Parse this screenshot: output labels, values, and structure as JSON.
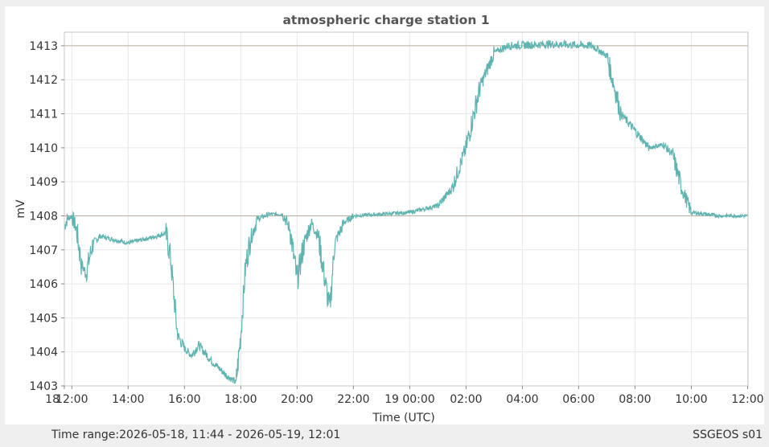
{
  "chart_data": {
    "type": "line",
    "title": "atmospheric charge station 1",
    "xlabel": "Time (UTC)",
    "ylabel": "mV",
    "x_range": [
      "2026-05-18 11:44",
      "2026-05-19 12:01"
    ],
    "ylim": [
      1403,
      1413.4
    ],
    "y_ticks": [
      1403,
      1404,
      1405,
      1406,
      1407,
      1408,
      1409,
      1410,
      1411,
      1412,
      1413
    ],
    "x_ticks": [
      {
        "time": "2026-05-18 11:44",
        "label": "18"
      },
      {
        "time": "2026-05-18 12:00",
        "label": "12:00"
      },
      {
        "time": "2026-05-18 14:00",
        "label": "14:00"
      },
      {
        "time": "2026-05-18 16:00",
        "label": "16:00"
      },
      {
        "time": "2026-05-18 18:00",
        "label": "18:00"
      },
      {
        "time": "2026-05-18 20:00",
        "label": "20:00"
      },
      {
        "time": "2026-05-18 22:00",
        "label": "22:00"
      },
      {
        "time": "2026-05-19 00:00",
        "label": "19 00:00"
      },
      {
        "time": "2026-05-19 02:00",
        "label": "02:00"
      },
      {
        "time": "2026-05-19 04:00",
        "label": "04:00"
      },
      {
        "time": "2026-05-19 06:00",
        "label": "06:00"
      },
      {
        "time": "2026-05-19 08:00",
        "label": "08:00"
      },
      {
        "time": "2026-05-19 10:00",
        "label": "10:00"
      },
      {
        "time": "2026-05-19 12:00",
        "label": "12:00"
      }
    ],
    "reference_lines": [
      1413,
      1408
    ],
    "grid": true,
    "series": [
      {
        "color": "#5fb3b0",
        "points": [
          [
            "2026-05-18 11:44",
            1407.7
          ],
          [
            "2026-05-18 11:50",
            1407.9
          ],
          [
            "2026-05-18 12:00",
            1408.0
          ],
          [
            "2026-05-18 12:10",
            1407.6
          ],
          [
            "2026-05-18 12:20",
            1406.6
          ],
          [
            "2026-05-18 12:30",
            1406.3
          ],
          [
            "2026-05-18 12:45",
            1407.2
          ],
          [
            "2026-05-18 13:00",
            1407.4
          ],
          [
            "2026-05-18 13:30",
            1407.3
          ],
          [
            "2026-05-18 14:00",
            1407.2
          ],
          [
            "2026-05-18 14:30",
            1407.3
          ],
          [
            "2026-05-18 15:00",
            1407.4
          ],
          [
            "2026-05-18 15:20",
            1407.5
          ],
          [
            "2026-05-18 15:30",
            1406.8
          ],
          [
            "2026-05-18 15:45",
            1404.5
          ],
          [
            "2026-05-18 16:00",
            1404.1
          ],
          [
            "2026-05-18 16:15",
            1403.9
          ],
          [
            "2026-05-18 16:30",
            1404.2
          ],
          [
            "2026-05-18 17:00",
            1403.7
          ],
          [
            "2026-05-18 17:30",
            1403.3
          ],
          [
            "2026-05-18 17:50",
            1403.1
          ],
          [
            "2026-05-18 18:00",
            1404.5
          ],
          [
            "2026-05-18 18:10",
            1406.5
          ],
          [
            "2026-05-18 18:20",
            1407.3
          ],
          [
            "2026-05-18 18:35",
            1407.9
          ],
          [
            "2026-05-18 19:00",
            1408.05
          ],
          [
            "2026-05-18 19:30",
            1408.05
          ],
          [
            "2026-05-18 19:45",
            1407.6
          ],
          [
            "2026-05-18 20:00",
            1406.1
          ],
          [
            "2026-05-18 20:15",
            1407.2
          ],
          [
            "2026-05-18 20:30",
            1407.8
          ],
          [
            "2026-05-18 20:45",
            1407.4
          ],
          [
            "2026-05-18 21:05",
            1405.6
          ],
          [
            "2026-05-18 21:10",
            1405.3
          ],
          [
            "2026-05-18 21:20",
            1407.2
          ],
          [
            "2026-05-18 21:40",
            1407.8
          ],
          [
            "2026-05-18 22:00",
            1408.0
          ],
          [
            "2026-05-19 00:00",
            1408.1
          ],
          [
            "2026-05-19 01:00",
            1408.3
          ],
          [
            "2026-05-19 01:30",
            1408.8
          ],
          [
            "2026-05-19 02:00",
            1410.0
          ],
          [
            "2026-05-19 02:30",
            1411.8
          ],
          [
            "2026-05-19 03:00",
            1412.8
          ],
          [
            "2026-05-19 03:30",
            1413.0
          ],
          [
            "2026-05-19 05:00",
            1413.05
          ],
          [
            "2026-05-19 06:30",
            1413.0
          ],
          [
            "2026-05-19 07:00",
            1412.7
          ],
          [
            "2026-05-19 07:30",
            1411.0
          ],
          [
            "2026-05-19 08:00",
            1410.5
          ],
          [
            "2026-05-19 08:30",
            1410.0
          ],
          [
            "2026-05-19 09:00",
            1410.1
          ],
          [
            "2026-05-19 09:20",
            1409.8
          ],
          [
            "2026-05-19 09:40",
            1408.8
          ],
          [
            "2026-05-19 10:00",
            1408.1
          ],
          [
            "2026-05-19 11:00",
            1408.0
          ],
          [
            "2026-05-19 12:01",
            1408.0
          ]
        ]
      }
    ]
  },
  "footer": {
    "time_range": "Time range:2026-05-18, 11:44 - 2026-05-19, 12:01",
    "station_label": "SSGEOS s01"
  }
}
